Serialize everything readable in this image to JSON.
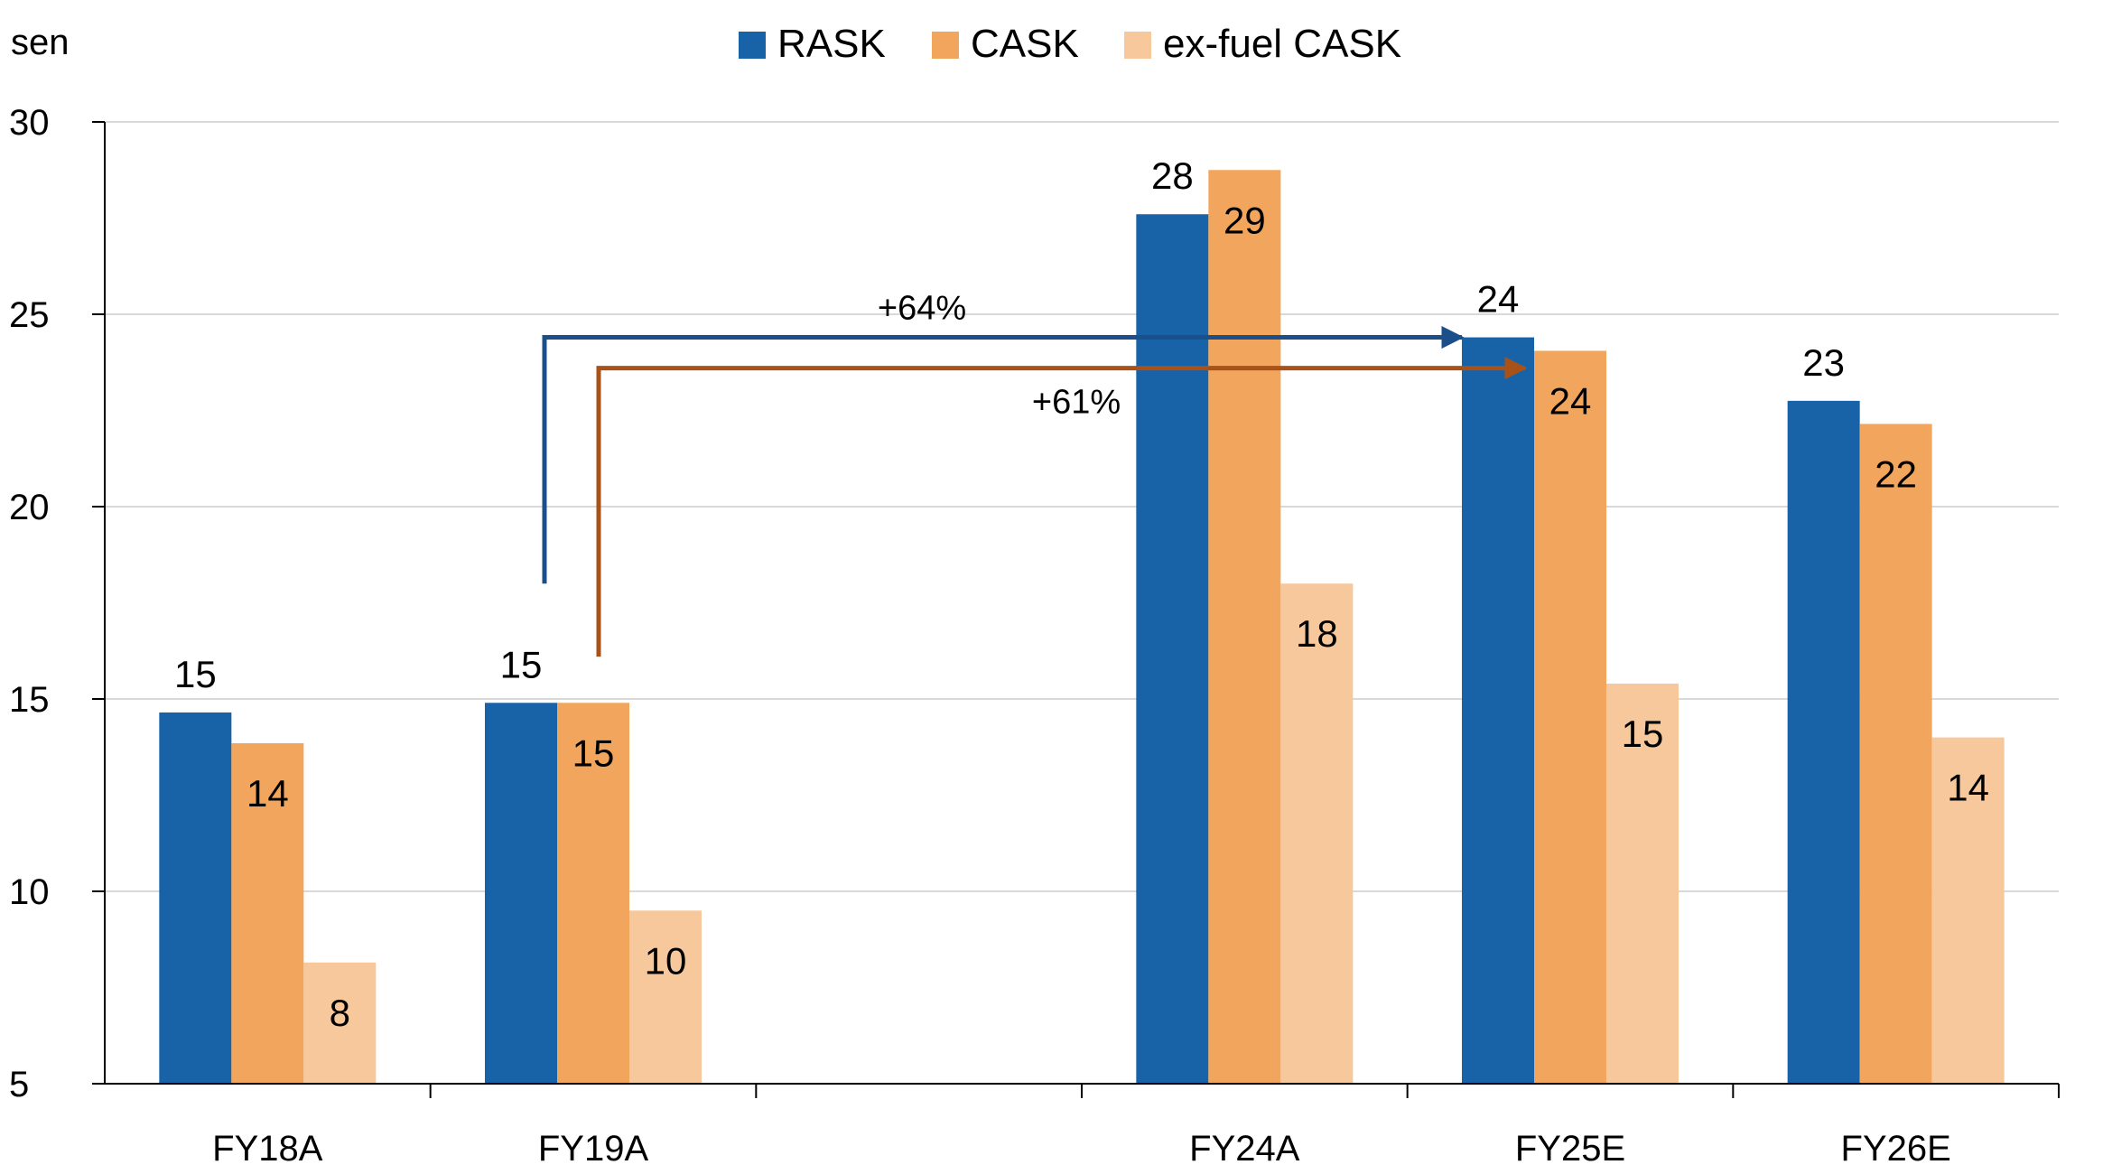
{
  "chart_data": {
    "type": "bar",
    "unit_label": "sen",
    "categories": [
      "FY18A",
      "FY19A",
      "",
      "FY24A",
      "FY25E",
      "FY26E"
    ],
    "series": [
      {
        "name": "RASK",
        "color": "#1862A8",
        "values": [
          14.65,
          14.9,
          null,
          27.6,
          24.4,
          22.75
        ],
        "labels": [
          "15",
          "15",
          "",
          "28",
          "24",
          "23"
        ]
      },
      {
        "name": "CASK",
        "color": "#F2A55C",
        "values": [
          13.85,
          14.9,
          null,
          28.75,
          24.05,
          22.15
        ],
        "labels": [
          "14",
          "15",
          "",
          "29",
          "24",
          "22"
        ]
      },
      {
        "name": "ex-fuel CASK",
        "color": "#F7C89C",
        "values": [
          8.15,
          9.5,
          null,
          18.0,
          15.4,
          14.0
        ],
        "labels": [
          "8",
          "10",
          "",
          "18",
          "15",
          "14"
        ]
      }
    ],
    "ylim": [
      5,
      30
    ],
    "yticks": [
      5,
      10,
      15,
      20,
      25,
      30
    ],
    "grid": true,
    "legend": "top-center",
    "annotations": [
      {
        "text": "+64%",
        "color": "#1B4F8A",
        "from_category": "FY19A",
        "from_value": 18,
        "to_category": "FY25E",
        "to_value": 24.4
      },
      {
        "text": "+61%",
        "color": "#A8521A",
        "from_category": "FY19A",
        "from_value": 16.1,
        "to_category": "FY25E",
        "to_value": 23.6
      }
    ]
  }
}
